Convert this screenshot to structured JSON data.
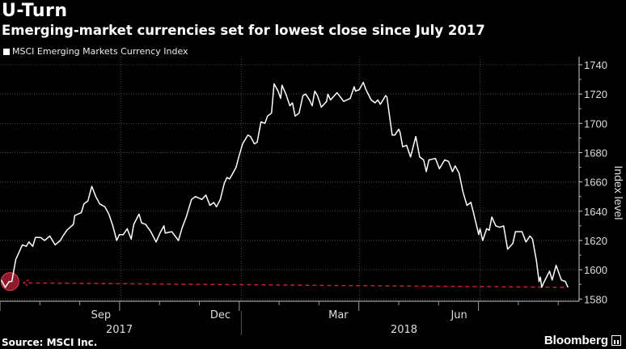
{
  "header": {
    "title": "U-Turn",
    "subtitle": "Emerging-market currencies set for lowest close since July 2017"
  },
  "footer": {
    "source": "Source: MSCI Inc.",
    "brand": "Bloomberg"
  },
  "colors": {
    "line": "#ffffff",
    "highlight": "#c0203a",
    "grid": "#555555",
    "background": "#000000"
  },
  "chart_data": {
    "type": "line",
    "title": "U-Turn",
    "subtitle": "Emerging-market currencies set for lowest close since July 2017",
    "x_unit": "days since 2017-07-01",
    "xlabel": "",
    "ylabel": "Index level",
    "ylim": [
      1580,
      1740
    ],
    "y_ticks": [
      1580,
      1600,
      1620,
      1640,
      1660,
      1680,
      1700,
      1720,
      1740
    ],
    "y_tick_labels": [
      "1580",
      "1600",
      "1620",
      "1640",
      "1660",
      "1680",
      "1700",
      "1720",
      "1740"
    ],
    "x_month_labels": [
      {
        "label": "Sep",
        "day": 77
      },
      {
        "label": "Dec",
        "day": 168
      },
      {
        "label": "Mar",
        "day": 258
      },
      {
        "label": "Jun",
        "day": 350
      }
    ],
    "x_year_labels": [
      {
        "label": "2017",
        "day": 91
      },
      {
        "label": "2018",
        "day": 308
      }
    ],
    "grid": true,
    "legend": {
      "position": "top-left",
      "entries": [
        "MSCI Emerging Markets Currency Index"
      ]
    },
    "series": [
      {
        "name": "MSCI Emerging Markets Currency Index",
        "x": [
          1,
          4,
          7,
          9,
          12,
          17,
          20,
          22,
          25,
          27,
          31,
          34,
          38,
          42,
          46,
          48,
          51,
          56,
          57,
          62,
          64,
          67,
          70,
          73,
          76,
          80,
          83,
          86,
          89,
          91,
          94,
          97,
          100,
          102,
          106,
          108,
          111,
          115,
          119,
          122,
          125,
          126,
          131,
          136,
          139,
          142,
          146,
          149,
          154,
          157,
          160,
          163,
          165,
          168,
          171,
          173,
          175,
          177,
          180,
          182,
          185,
          189,
          191,
          194,
          196,
          199,
          202,
          204,
          207,
          209,
          212,
          214,
          215,
          218,
          221,
          223,
          225,
          228,
          231,
          233,
          236,
          238,
          240,
          242,
          245,
          249,
          250,
          252,
          257,
          262,
          267,
          270,
          271,
          274,
          277,
          279,
          283,
          286,
          288,
          290,
          294,
          295,
          299,
          301,
          304,
          305,
          307,
          310,
          313,
          317,
          320,
          323,
          325,
          327,
          332,
          335,
          339,
          342,
          345,
          347,
          350,
          353,
          356,
          359,
          361,
          365,
          366,
          368,
          371,
          373,
          375,
          378,
          381,
          384,
          387,
          391,
          393,
          398,
          401,
          404,
          406,
          409,
          411,
          412,
          413,
          415,
          419,
          421,
          424,
          428,
          431,
          433
        ],
        "values": [
          1593,
          1588,
          1592,
          1592,
          1607,
          1617,
          1616,
          1619,
          1616,
          1622,
          1622,
          1620,
          1623,
          1617,
          1620,
          1623,
          1627,
          1631,
          1637,
          1639,
          1645,
          1647,
          1657,
          1650,
          1645,
          1643,
          1638,
          1630,
          1620,
          1624,
          1624,
          1628,
          1621,
          1631,
          1638,
          1632,
          1631,
          1626,
          1619,
          1625,
          1630,
          1625,
          1626,
          1620,
          1629,
          1636,
          1648,
          1650,
          1648,
          1651,
          1644,
          1646,
          1643,
          1648,
          1659,
          1663,
          1662,
          1665,
          1670,
          1677,
          1686,
          1692,
          1691,
          1686,
          1687,
          1701,
          1700,
          1705,
          1707,
          1727,
          1722,
          1717,
          1726,
          1720,
          1712,
          1714,
          1705,
          1707,
          1719,
          1720,
          1716,
          1712,
          1722,
          1719,
          1711,
          1715,
          1720,
          1716,
          1721,
          1715,
          1717,
          1725,
          1722,
          1723,
          1728,
          1723,
          1716,
          1714,
          1716,
          1713,
          1719,
          1718,
          1692,
          1692,
          1696,
          1694,
          1684,
          1685,
          1677,
          1691,
          1677,
          1675,
          1667,
          1675,
          1676,
          1669,
          1675,
          1674,
          1667,
          1671,
          1666,
          1653,
          1644,
          1646,
          1639,
          1624,
          1628,
          1620,
          1628,
          1627,
          1636,
          1630,
          1629,
          1630,
          1614,
          1618,
          1626,
          1626,
          1619,
          1623,
          1621,
          1606,
          1592,
          1595,
          1588,
          1592,
          1599,
          1593,
          1603,
          1593,
          1592,
          1588
        ]
      }
    ],
    "annotations": [
      {
        "type": "circle-marker",
        "day": 7,
        "value": 1592
      },
      {
        "type": "dashed-arrow",
        "from": {
          "day": 430,
          "value": 1588
        },
        "to": {
          "day": 18,
          "value": 1591
        }
      }
    ]
  }
}
